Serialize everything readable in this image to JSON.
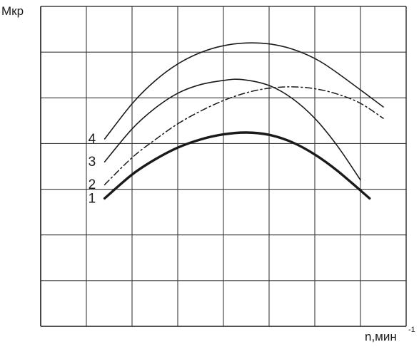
{
  "chart_data": {
    "type": "line",
    "title": "",
    "ylabel": "Мкр",
    "xlabel": "n,мин",
    "xlabel_sup": "-1",
    "xlim": [
      0,
      8
    ],
    "ylim": [
      0,
      7
    ],
    "grid": true,
    "series": [
      {
        "name": "1",
        "style": "thick",
        "x": [
          1.4,
          2.0,
          2.5,
          3.0,
          3.5,
          4.0,
          4.5,
          5.0,
          5.5,
          6.0,
          6.5,
          7.2
        ],
        "y": [
          2.8,
          3.32,
          3.65,
          3.91,
          4.09,
          4.2,
          4.24,
          4.19,
          4.03,
          3.76,
          3.4,
          2.8
        ]
      },
      {
        "name": "2",
        "style": "dash-dot",
        "x": [
          1.4,
          2.0,
          2.5,
          3.0,
          3.5,
          4.0,
          4.5,
          5.0,
          5.5,
          6.0,
          6.5,
          7.0,
          7.5
        ],
        "y": [
          3.1,
          3.69,
          4.08,
          4.43,
          4.71,
          4.94,
          5.11,
          5.21,
          5.24,
          5.2,
          5.08,
          4.88,
          4.55
        ]
      },
      {
        "name": "3",
        "style": "thin",
        "x": [
          1.4,
          2.0,
          2.5,
          3.0,
          3.5,
          4.0,
          4.4,
          5.0,
          5.5,
          6.0,
          6.5,
          7.0
        ],
        "y": [
          3.6,
          4.32,
          4.77,
          5.1,
          5.29,
          5.38,
          5.4,
          5.27,
          4.99,
          4.55,
          3.94,
          3.2
        ]
      },
      {
        "name": "4",
        "style": "thin",
        "x": [
          1.4,
          2.0,
          2.5,
          3.0,
          3.5,
          4.0,
          4.5,
          5.0,
          5.5,
          6.0,
          6.5,
          7.5
        ],
        "y": [
          4.1,
          4.87,
          5.37,
          5.74,
          5.99,
          6.14,
          6.2,
          6.18,
          6.07,
          5.86,
          5.54,
          4.8
        ]
      }
    ]
  }
}
